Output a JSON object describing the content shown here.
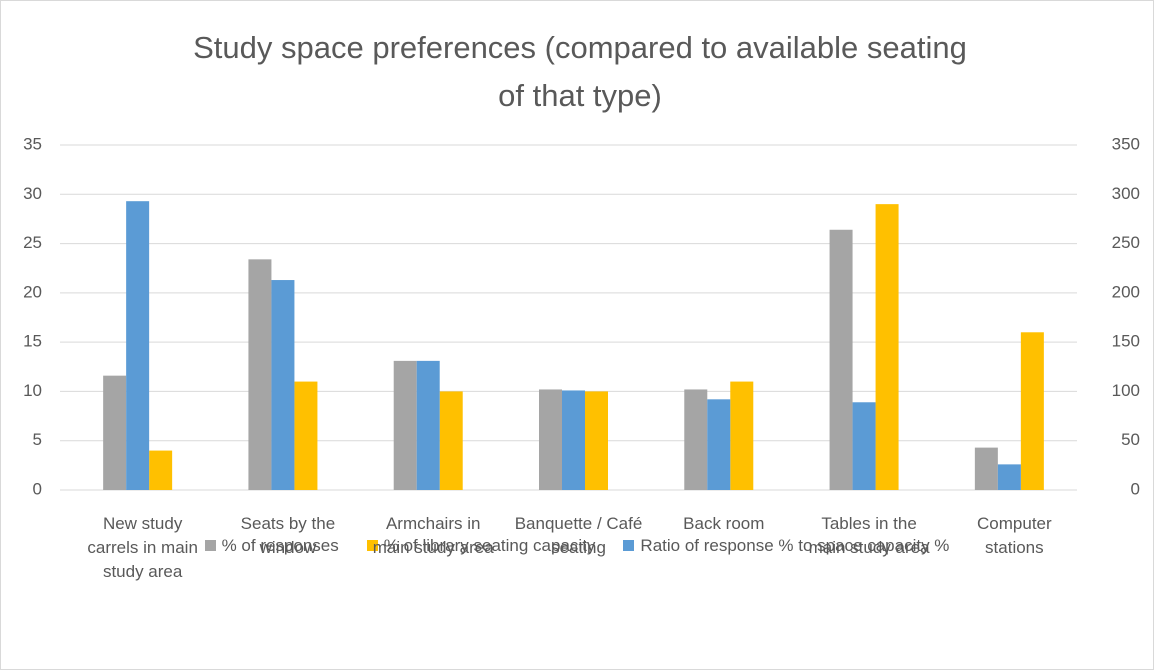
{
  "chart_data": {
    "type": "bar",
    "title": "Study space preferences (compared to available seating of that type)",
    "categories": [
      "New study carrels in main study area",
      "Seats by the window",
      "Armchairs in main study area",
      "Banquette / Café seating",
      "Back room",
      "Tables in the main study area",
      "Computer stations"
    ],
    "series": [
      {
        "name": "% of responses",
        "color": "#a5a5a5",
        "values": [
          11.6,
          23.4,
          13.1,
          10.2,
          10.2,
          26.4,
          4.3
        ]
      },
      {
        "name": "% of library seating capacity",
        "color": "#ffc000",
        "values": [
          4,
          11,
          10,
          10,
          11,
          29,
          16
        ]
      },
      {
        "name": "Ratio of response % to space capacity %",
        "color": "#5b9bd5",
        "axis": "y2",
        "values": [
          293,
          213,
          131,
          101,
          92,
          89,
          26
        ]
      }
    ],
    "ylim": [
      0,
      35
    ],
    "yticks": [
      0,
      5,
      10,
      15,
      20,
      25,
      30,
      35
    ],
    "y2lim": [
      0,
      350
    ],
    "y2ticks": [
      0,
      50,
      100,
      150,
      200,
      250,
      300,
      350
    ],
    "grid": true,
    "legend": "bottom"
  }
}
